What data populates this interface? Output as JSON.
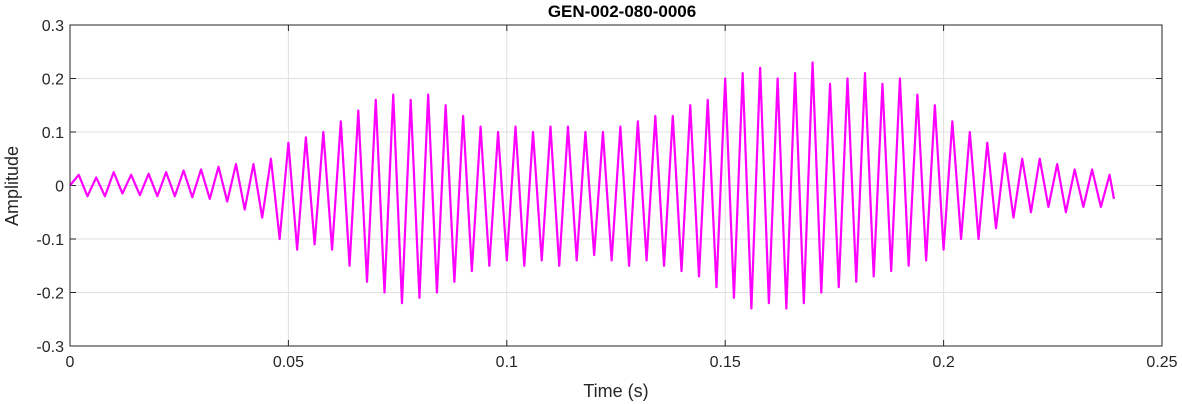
{
  "chart_data": {
    "type": "line",
    "title": "GEN-002-080-0006",
    "xlabel": "Time (s)",
    "ylabel": "Amplitude",
    "xlim": [
      0,
      0.25
    ],
    "ylim": [
      -0.3,
      0.3
    ],
    "x_ticks": [
      0,
      0.05,
      0.1,
      0.15,
      0.2,
      0.25
    ],
    "x_tick_labels": [
      "0",
      "0.05",
      "0.1",
      "0.15",
      "0.2",
      "0.25"
    ],
    "y_ticks": [
      -0.3,
      -0.2,
      -0.1,
      0,
      0.1,
      0.2,
      0.3
    ],
    "y_tick_labels": [
      "-0.3",
      "-0.2",
      "-0.1",
      "0",
      "0.1",
      "0.2",
      "0.3"
    ],
    "grid": true,
    "line_color": "#ff00ff",
    "series": [
      {
        "x": [
          0,
          0.002,
          0.004,
          0.006,
          0.008,
          0.01,
          0.012,
          0.014,
          0.016,
          0.018,
          0.02,
          0.022,
          0.024,
          0.026,
          0.028,
          0.03,
          0.032,
          0.034,
          0.036,
          0.038,
          0.04,
          0.042,
          0.044,
          0.046,
          0.048,
          0.05,
          0.052,
          0.054,
          0.056,
          0.058,
          0.06,
          0.062,
          0.064,
          0.066,
          0.068,
          0.07,
          0.072,
          0.074,
          0.076,
          0.078,
          0.08,
          0.082,
          0.084,
          0.086,
          0.088,
          0.09,
          0.092,
          0.094,
          0.096,
          0.098,
          0.1,
          0.102,
          0.104,
          0.106,
          0.108,
          0.11,
          0.112,
          0.114,
          0.116,
          0.118,
          0.12,
          0.122,
          0.124,
          0.126,
          0.128,
          0.13,
          0.132,
          0.134,
          0.136,
          0.138,
          0.14,
          0.142,
          0.144,
          0.146,
          0.148,
          0.15,
          0.152,
          0.154,
          0.156,
          0.158,
          0.16,
          0.162,
          0.164,
          0.166,
          0.168,
          0.17,
          0.172,
          0.174,
          0.176,
          0.178,
          0.18,
          0.182,
          0.184,
          0.186,
          0.188,
          0.19,
          0.192,
          0.194,
          0.196,
          0.198,
          0.2,
          0.202,
          0.204,
          0.206,
          0.208,
          0.21,
          0.212,
          0.214,
          0.216,
          0.218,
          0.22,
          0.222,
          0.224,
          0.226,
          0.228,
          0.23,
          0.232,
          0.234,
          0.236,
          0.238,
          0.239
        ],
        "y": [
          0,
          0.02,
          -0.02,
          0.015,
          -0.02,
          0.025,
          -0.015,
          0.02,
          -0.018,
          0.022,
          -0.02,
          0.025,
          -0.02,
          0.028,
          -0.022,
          0.03,
          -0.025,
          0.035,
          -0.03,
          0.04,
          -0.045,
          0.04,
          -0.06,
          0.05,
          -0.1,
          0.08,
          -0.12,
          0.09,
          -0.11,
          0.1,
          -0.12,
          0.12,
          -0.15,
          0.14,
          -0.18,
          0.16,
          -0.2,
          0.17,
          -0.22,
          0.16,
          -0.21,
          0.17,
          -0.2,
          0.15,
          -0.18,
          0.13,
          -0.16,
          0.11,
          -0.15,
          0.1,
          -0.14,
          0.11,
          -0.15,
          0.1,
          -0.14,
          0.11,
          -0.15,
          0.11,
          -0.14,
          0.1,
          -0.13,
          0.1,
          -0.14,
          0.11,
          -0.15,
          0.12,
          -0.14,
          0.13,
          -0.15,
          0.13,
          -0.16,
          0.15,
          -0.17,
          0.16,
          -0.19,
          0.2,
          -0.21,
          0.21,
          -0.23,
          0.22,
          -0.22,
          0.2,
          -0.23,
          0.21,
          -0.22,
          0.23,
          -0.2,
          0.19,
          -0.19,
          0.2,
          -0.18,
          0.21,
          -0.17,
          0.19,
          -0.16,
          0.2,
          -0.15,
          0.17,
          -0.14,
          0.15,
          -0.12,
          0.12,
          -0.1,
          0.1,
          -0.1,
          0.08,
          -0.08,
          0.06,
          -0.06,
          0.05,
          -0.05,
          0.05,
          -0.04,
          0.04,
          -0.05,
          0.03,
          -0.04,
          0.03,
          -0.04,
          0.02,
          -0.025
        ]
      }
    ]
  }
}
